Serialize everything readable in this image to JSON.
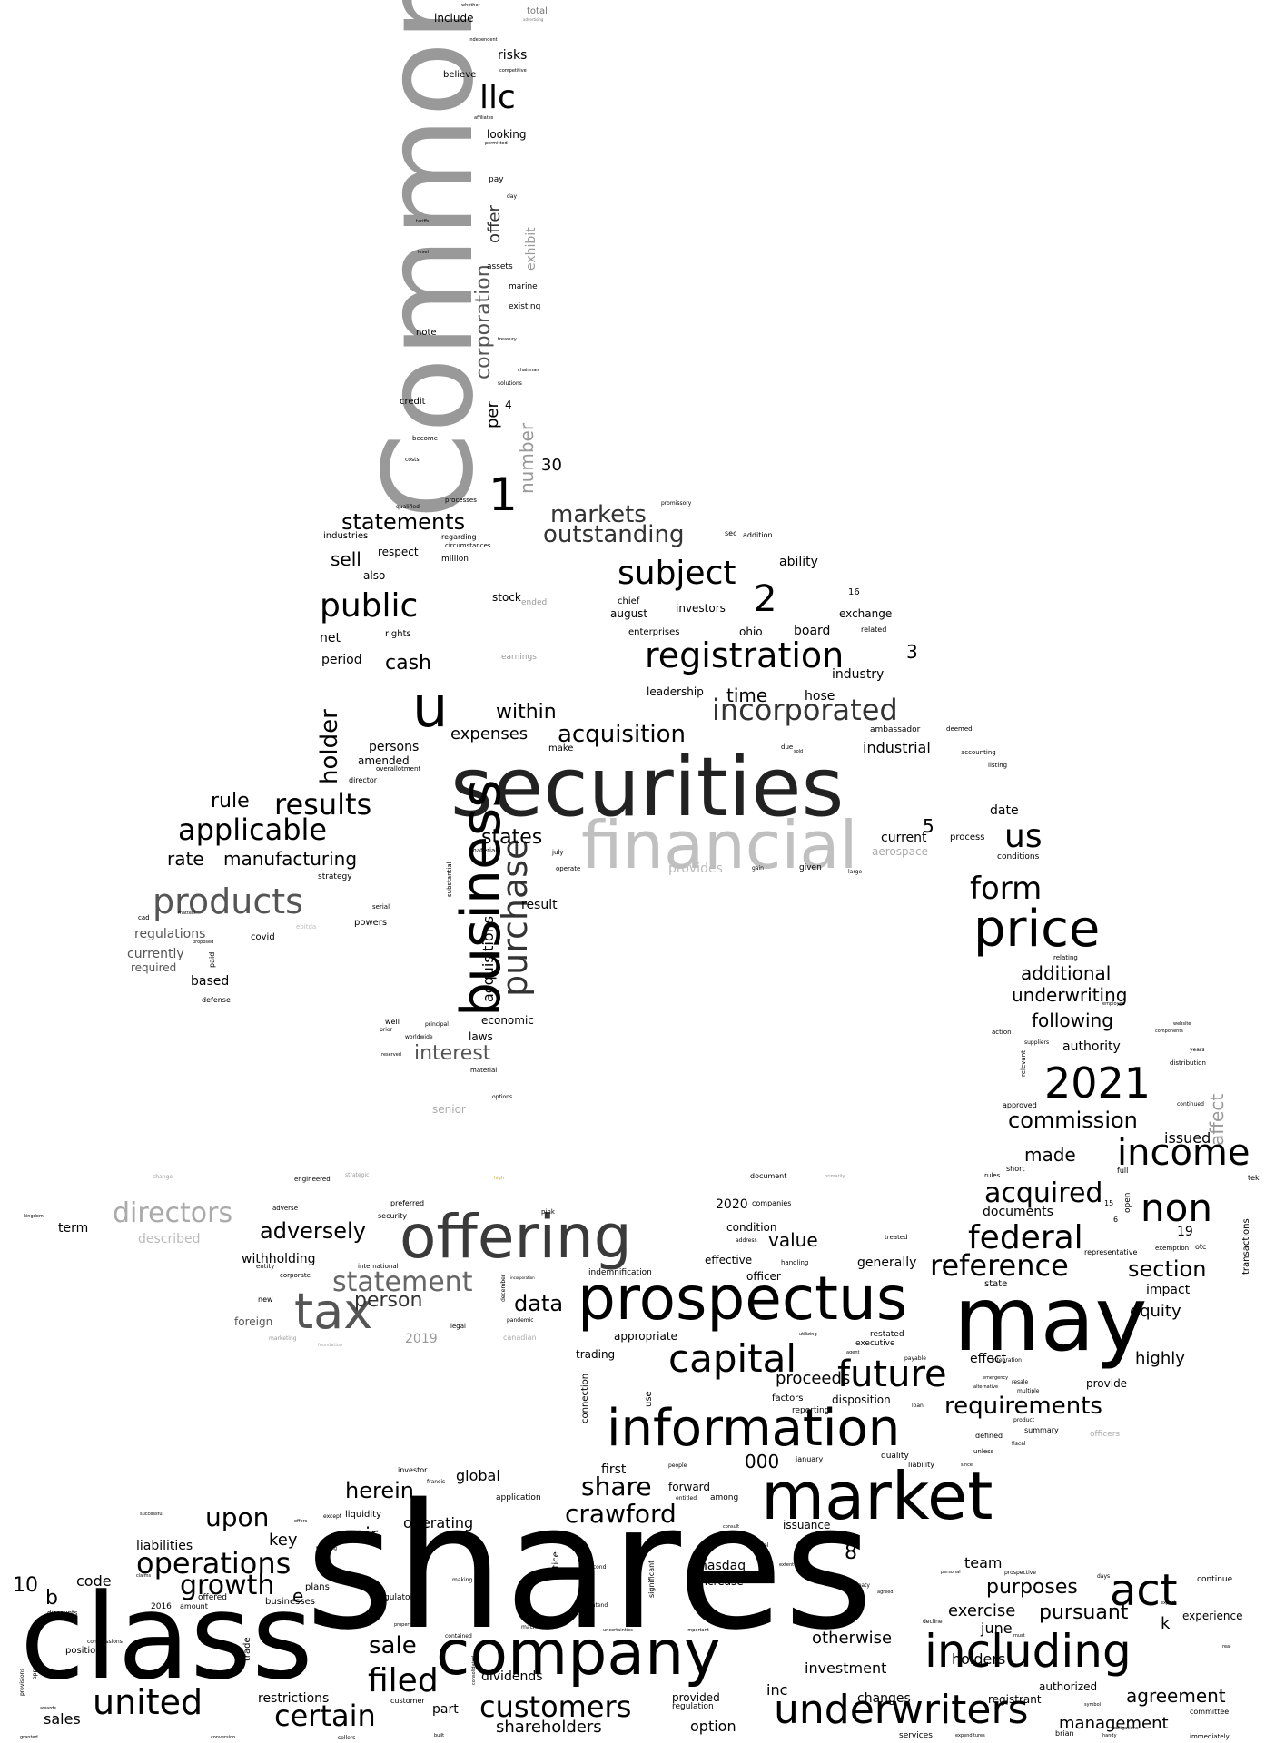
{
  "words": {
    "shares": "shares",
    "class": "class",
    "company": "company",
    "market": "market",
    "prospectus": "prospectus",
    "may": "may",
    "securities": "securities",
    "common": "Common",
    "financial": "financial",
    "offering": "offering",
    "information": "information",
    "including": "including",
    "business": "business",
    "u": "u",
    "price": "price",
    "underwriters": "underwriters",
    "year_2021": "2021",
    "act": "act",
    "income": "income",
    "non": "non",
    "tax": "tax",
    "capital": "capital",
    "future": "future",
    "registration": "registration",
    "subject": "subject",
    "public": "public",
    "incorporated": "incorporated",
    "products": "products",
    "purchase": "purchase",
    "llc": "llc",
    "one": "1",
    "two": "2",
    "acquisition": "acquisition",
    "operations": "operations",
    "united": "united",
    "crawford": "crawford",
    "customers": "customers",
    "filed": "filed",
    "certain": "certain",
    "federal": "federal",
    "reference": "reference",
    "form": "form",
    "us": "us",
    "applicable": "applicable",
    "results": "results",
    "statement": "statement",
    "directors": "directors",
    "acquired": "acquired",
    "requirements": "requirements",
    "growth": "growth",
    "upon": "upon",
    "commission": "commission",
    "share": "share",
    "statements": "statements",
    "markets": "markets",
    "outstanding": "outstanding",
    "holder": "holder",
    "section": "section",
    "interest": "interest",
    "data": "data",
    "herein": "herein",
    "person": "person",
    "adversely": "adversely",
    "sale": "sale",
    "agreement": "agreement",
    "pursuant": "pursuant",
    "purposes": "purposes",
    "corporation": "corporation",
    "number": "number",
    "affect": "affect",
    "manufacturing": "manufacturing",
    "rate": "rate",
    "rule": "rule",
    "within": "within",
    "cash": "cash",
    "sell": "sell",
    "time": "time",
    "additional": "additional",
    "underwriting": "underwriting",
    "following": "following",
    "made": "made",
    "issued": "issued",
    "states": "states",
    "expenses": "expenses",
    "acquisitions": "acquisitions",
    "equity": "equity",
    "highly": "highly",
    "exercise": "exercise",
    "value": "value",
    "proceeds": "proceeds",
    "otherwise": "otherwise",
    "investment": "investment",
    "shareholders": "shareholders",
    "management": "management",
    "holders": "holders",
    "k": "k",
    "team": "team",
    "june": "june",
    "experience": "experience",
    "global": "global",
    "operating": "operating",
    "air": "air",
    "key": "key",
    "liabilities": "liabilities",
    "code": "code",
    "b": "b",
    "ten": "10",
    "sales": "sales",
    "restrictions": "restrictions",
    "part": "part",
    "dividends": "dividends",
    "nasdaq": "nasdaq",
    "increase": "increase",
    "option": "option",
    "provided": "provided",
    "changes": "changes",
    "inc": "inc",
    "eight": "8",
    "first": "first",
    "e": "e",
    "thousand": "000",
    "industrial": "industrial",
    "industry": "industry",
    "three": "3",
    "five": "5",
    "thirty": "30",
    "offer": "offer",
    "exhibit": "exhibit",
    "per": "per",
    "risks": "risks",
    "looking": "looking",
    "include": "include",
    "ability": "ability",
    "board": "board",
    "exchange": "exchange",
    "investors": "investors",
    "august": "august",
    "leadership": "leadership",
    "hose": "hose",
    "stock": "stock",
    "net": "net",
    "period": "period",
    "persons": "persons",
    "amended": "amended",
    "currently": "currently",
    "regulations": "regulations",
    "required": "required",
    "based": "based",
    "withholding": "withholding",
    "term": "term",
    "described": "described",
    "foreign": "foreign",
    "year_2019": "2019",
    "trading": "trading",
    "appropriate": "appropriate",
    "effective": "effective",
    "officer": "officer",
    "condition": "condition",
    "generally": "generally",
    "impact": "impact",
    "effect": "effect",
    "provide": "provide",
    "authority": "authority",
    "documents": "documents",
    "result": "result",
    "economic": "economic",
    "laws": "laws",
    "senior": "senior",
    "date": "date",
    "current": "current",
    "aerospace": "aerospace",
    "provides": "provides",
    "authorized": "authorized",
    "registrant": "registrant",
    "year_2020": "2020",
    "nineteen": "19",
    "four": "4",
    "sixteen": "16",
    "enterprises": "enterprises",
    "ohio": "ohio",
    "chief": "chief",
    "rights": "rights",
    "also": "also",
    "respect": "respect",
    "industries": "industries",
    "million": "million",
    "credit": "credit",
    "note": "note",
    "existing": "existing",
    "marine": "marine",
    "assets": "assets",
    "pay": "pay",
    "total": "total",
    "believe": "believe",
    "covid": "covid",
    "defense": "defense",
    "strategy": "strategy",
    "powers": "powers",
    "director": "director",
    "serial": "serial",
    "ended": "ended",
    "earnings": "earnings",
    "related": "related",
    "ambassador": "ambassador",
    "process": "process",
    "conditions": "conditions",
    "listing": "listing",
    "accounting": "accounting",
    "deemed": "deemed",
    "distribution": "distribution",
    "approved": "approved",
    "continued": "continued",
    "exemption": "exemption",
    "representative": "representative",
    "defined": "defined",
    "summary": "summary",
    "officers": "officers",
    "without": "without",
    "quality": "quality",
    "disposition": "disposition",
    "reporting": "reporting",
    "factors": "factors",
    "restated": "restated",
    "executive": "executive",
    "january": "january",
    "forward": "forward",
    "among": "among",
    "application": "application",
    "issuance": "issuance",
    "notice": "notice",
    "connection": "connection",
    "use": "use",
    "regulatory": "regulatory",
    "businesses": "businesses",
    "plans": "plans",
    "investor": "investor",
    "liquidity": "liquidity",
    "offered": "offered",
    "amount": "amount",
    "year_2016": "2016",
    "trade": "trade",
    "position": "position",
    "discounts": "discounts",
    "customer": "customer",
    "services": "services",
    "brian": "brian",
    "continue": "continue",
    "immediately": "immediately",
    "committee": "committee",
    "transactions": "transactions",
    "otc": "otc",
    "tek": "tek",
    "indemnification": "indemnification",
    "companies": "companies",
    "document": "document",
    "preferred": "preferred",
    "security": "security",
    "international": "international",
    "entity": "entity",
    "corporate": "corporate",
    "new": "new",
    "legal": "legal",
    "canadian": "canadian",
    "pink": "pink",
    "handling": "handling",
    "treated": "treated",
    "state": "state",
    "integration": "integration",
    "short": "short",
    "rules": "rules",
    "full": "full",
    "open": "open",
    "six": "6",
    "fifteen": "15",
    "engineered": "engineered",
    "strategic": "strategic",
    "change": "change",
    "high": "high",
    "primarily": "primarily",
    "kingdom": "kingdom",
    "ebitda": "ebitda",
    "paid": "paid",
    "matters": "matters",
    "cad": "cad",
    "proposed": "proposed",
    "principal": "principal",
    "well": "well",
    "prior": "prior",
    "worldwide": "worldwide",
    "material": "material",
    "options": "options",
    "reserved": "reserved",
    "make": "make",
    "gain": "gain",
    "given": "given",
    "large": "large",
    "sold": "sold",
    "due": "due",
    "july": "july",
    "operate": "operate",
    "materials": "materials",
    "substantial": "substantial",
    "overallotment": "overallotment",
    "promissory": "promissory",
    "addition": "addition",
    "sec": "sec",
    "regarding": "regarding",
    "circumstances": "circumstances",
    "processes": "processes",
    "qualified": "qualified",
    "become": "become",
    "costs": "costs",
    "solutions": "solutions",
    "chairman": "chairman",
    "treasury": "treasury",
    "day": "day",
    "permitted": "permitted",
    "affiliates": "affiliates",
    "competitive": "competitive",
    "independent": "independent",
    "whether": "whether",
    "advertising": "advertising",
    "tariffs": "tariffs",
    "level": "level",
    "adverse": "adverse",
    "relevant": "relevant",
    "relating": "relating",
    "action": "action",
    "suppliers": "suppliers",
    "years": "years",
    "components": "components",
    "website": "website",
    "employee": "employee",
    "liability": "liability",
    "unless": "unless",
    "since": "since",
    "fiscal": "fiscal",
    "product": "product",
    "resale": "resale",
    "multiple": "multiple",
    "emergency": "emergency",
    "alternative": "alternative",
    "payable": "payable",
    "agent": "agent",
    "utilizing": "utilizing",
    "loan": "loan",
    "significant": "significant",
    "second": "second",
    "intend": "intend",
    "making": "making",
    "contained": "contained",
    "property": "property",
    "francis": "francis",
    "financing": "financing",
    "except": "except",
    "offers": "offers",
    "successful": "successful",
    "claims": "claims",
    "commissions": "commissions",
    "approximately": "approximately",
    "provisions": "provisions",
    "awards": "awards",
    "granted": "granted",
    "conversion": "conversion",
    "sellers": "sellers",
    "built": "built",
    "symbol": "symbol",
    "handy": "handy",
    "obligations": "obligations",
    "expenditures": "expenditures",
    "regulation": "regulation",
    "consolidated": "consolidated",
    "machining": "machining",
    "uncertainties": "uncertainties",
    "important": "important",
    "foundation": "foundation",
    "marketing": "marketing",
    "pandemic": "pandemic",
    "december": "december",
    "incorporation": "incorporation",
    "address": "address",
    "entitled": "entitled",
    "people": "people",
    "consult": "consult",
    "actual": "actual",
    "extent": "extent",
    "treaty": "treaty",
    "agreed": "agreed",
    "decline": "decline",
    "personal": "personal",
    "prospective": "prospective",
    "must": "must",
    "days": "days",
    "expect": "expect",
    "real": "real"
  }
}
